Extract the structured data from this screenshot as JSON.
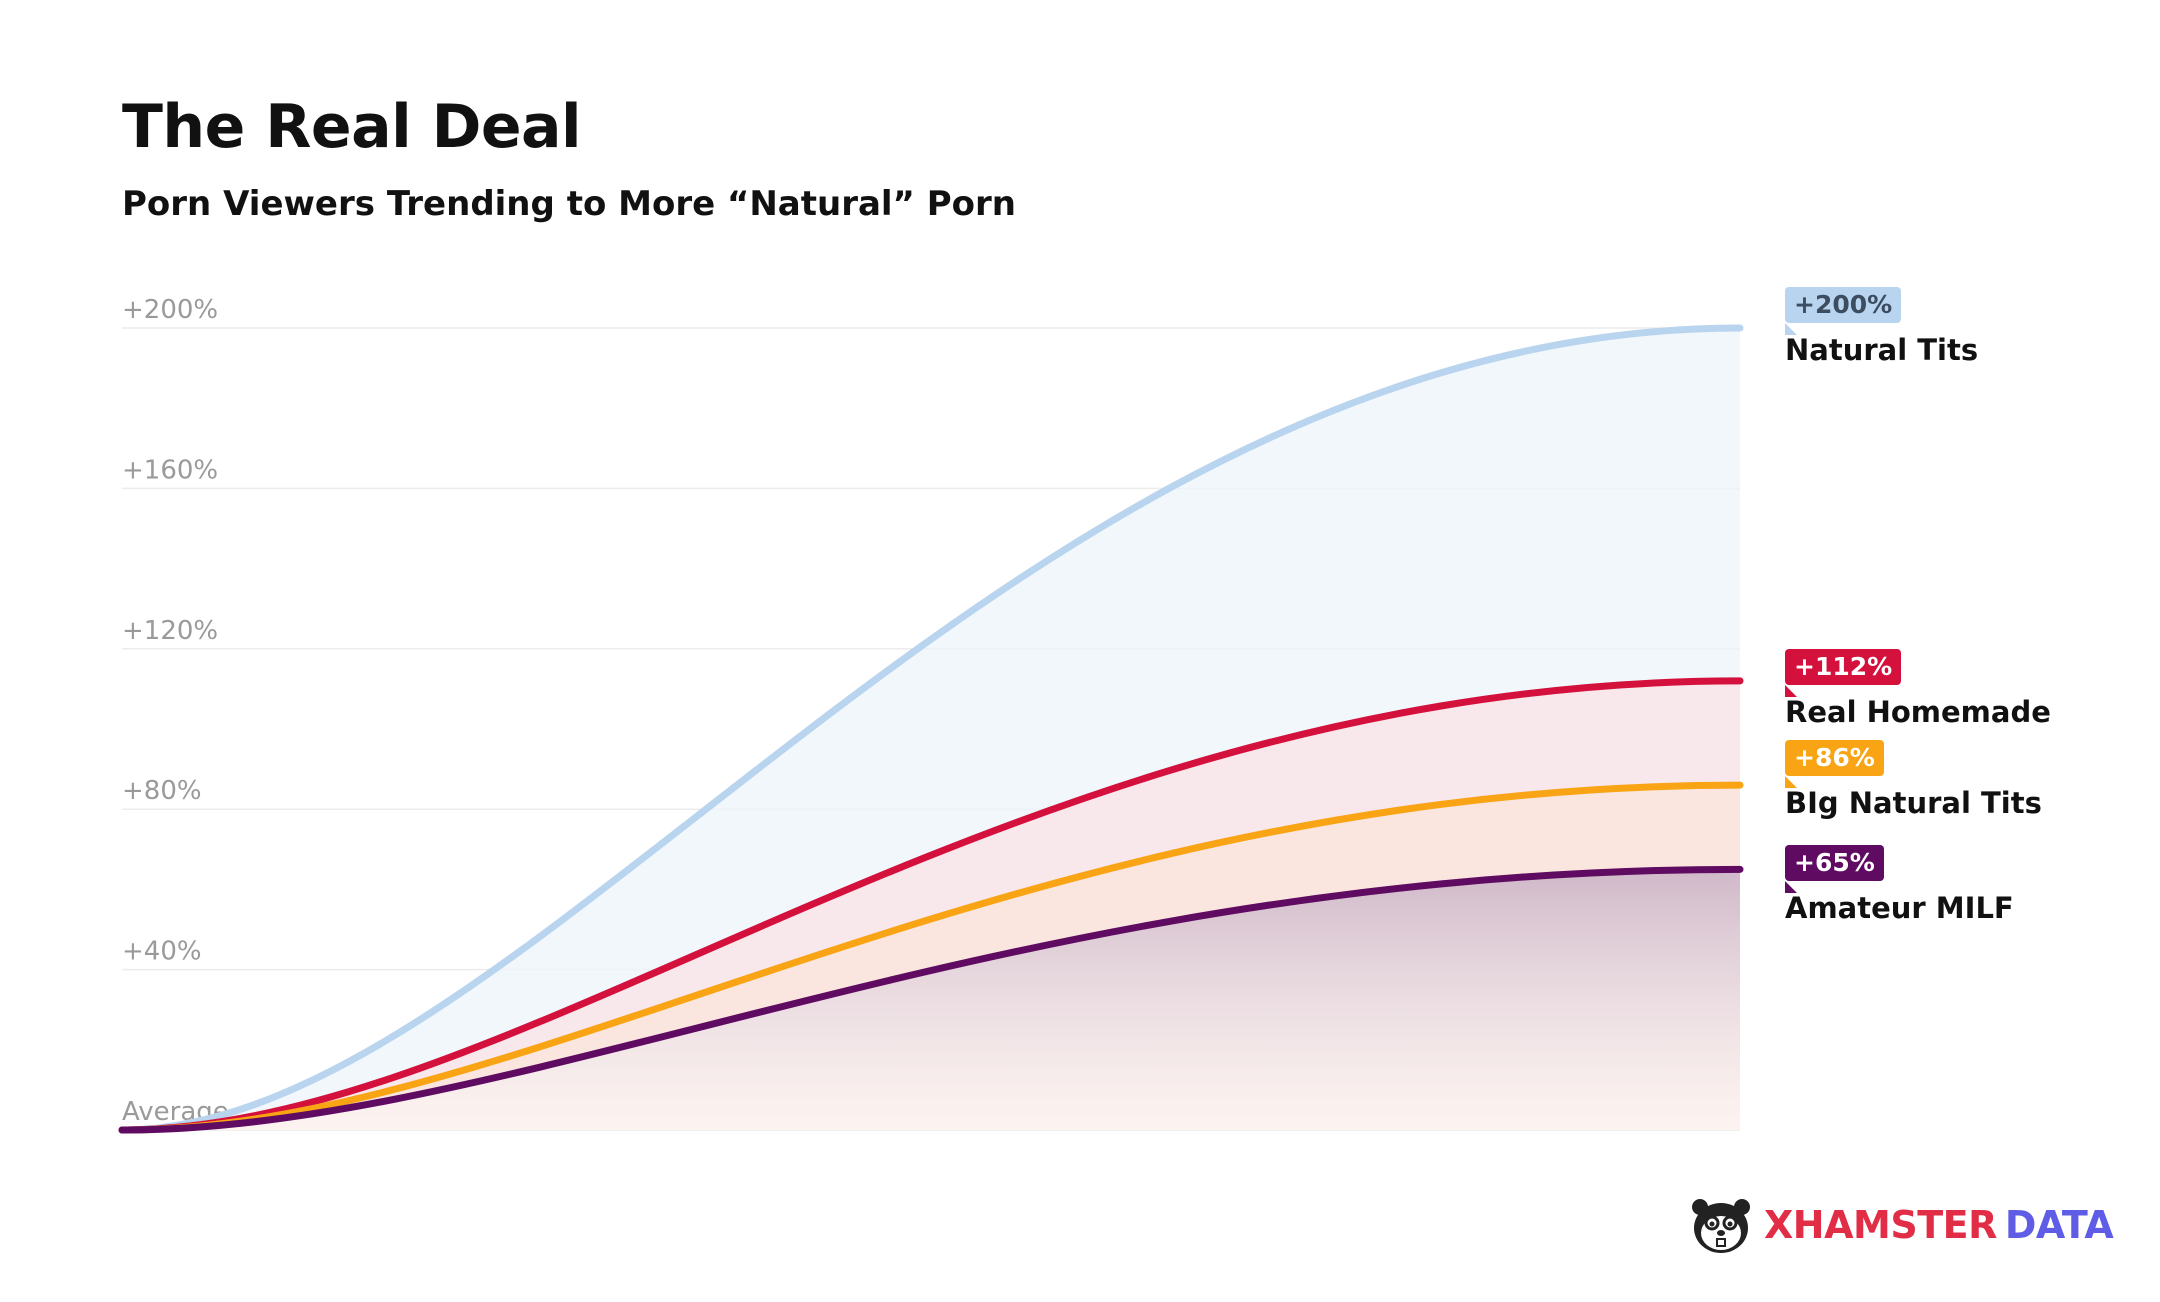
{
  "title": "The Real Deal",
  "subtitle": "Porn Viewers Trending to More “Natural” Porn",
  "brand": {
    "part1": "XHAMSTER",
    "part2": "DATA"
  },
  "chart_data": {
    "type": "line",
    "title": "The Real Deal",
    "subtitle": "Porn Viewers Trending to More “Natural” Porn",
    "ylim": [
      0,
      200
    ],
    "yticks": [
      {
        "value": 0,
        "label": "Average"
      },
      {
        "value": 40,
        "label": "+40%"
      },
      {
        "value": 80,
        "label": "+80%"
      },
      {
        "value": 120,
        "label": "+120%"
      },
      {
        "value": 160,
        "label": "+160%"
      },
      {
        "value": 200,
        "label": "+200%"
      }
    ],
    "grid": true,
    "legend_placement": "right",
    "series": [
      {
        "name": "Natural Tits",
        "value": 200,
        "label": "+200%",
        "color": "#b9d4ee",
        "fill": "#eef4fb"
      },
      {
        "name": "Real Homemade",
        "value": 112,
        "label": "+112%",
        "color": "#d4103c",
        "fill": "#f9e1e6"
      },
      {
        "name": "BIg Natural Tits",
        "value": 86,
        "label": "+86%",
        "color": "#f9a415",
        "fill": "#fbe6da"
      },
      {
        "name": "Amateur MILF",
        "value": 65,
        "label": "+65%",
        "color": "#5f0b62",
        "fill": "#d2bccc"
      }
    ]
  }
}
